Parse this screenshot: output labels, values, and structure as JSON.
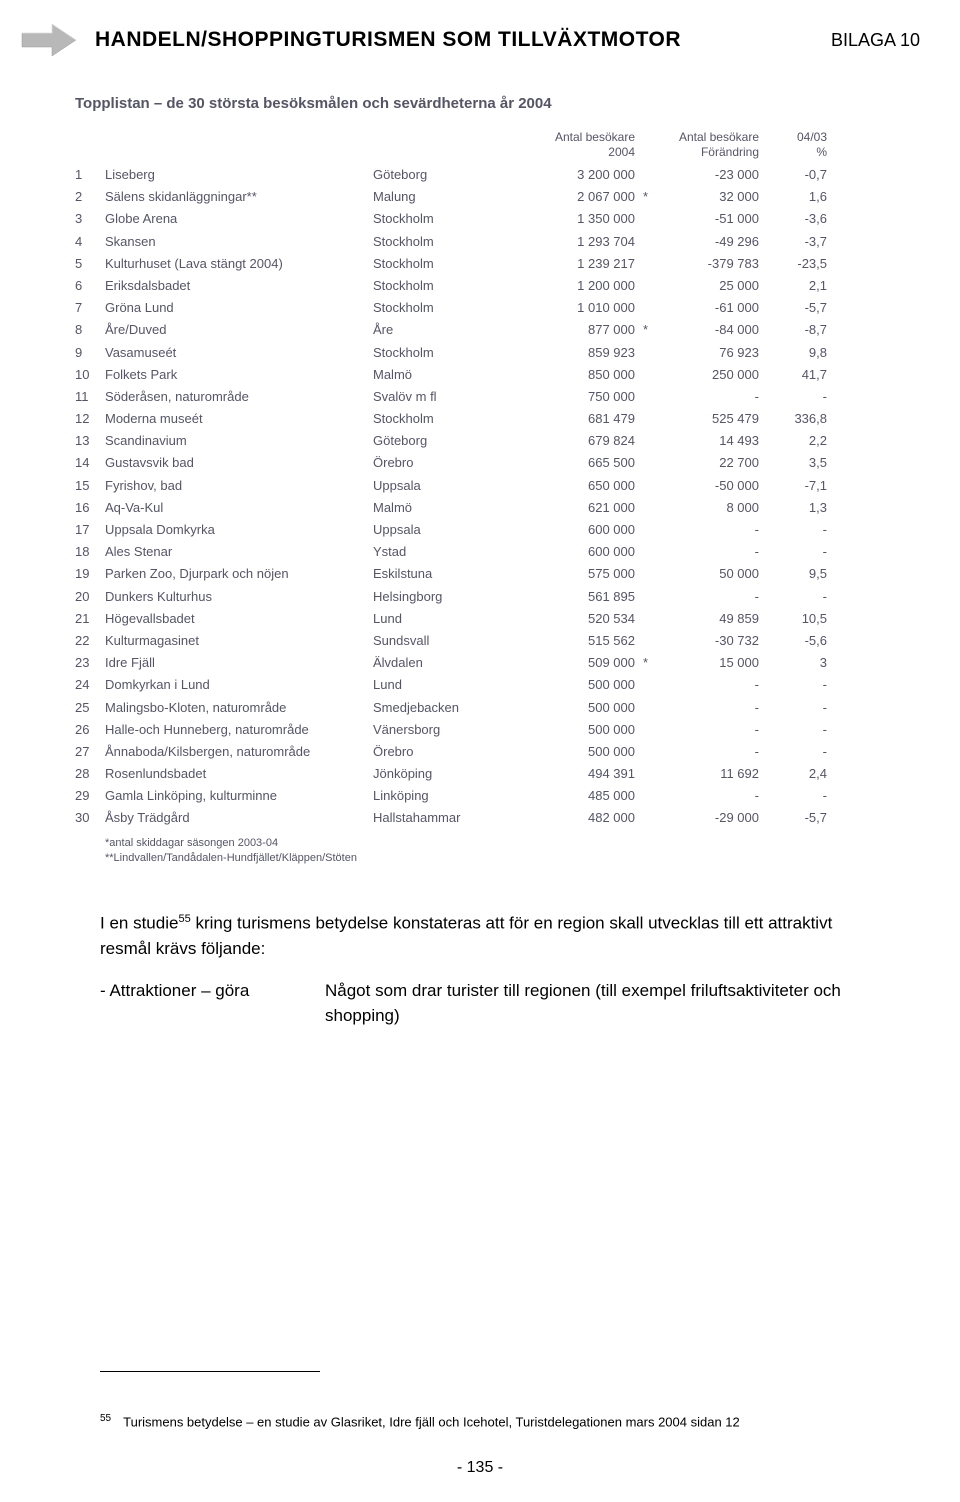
{
  "header": {
    "title": "HANDELN/SHOPPINGTURISMEN SOM TILLVÄXTMOTOR",
    "appendix": "BILAGA 10",
    "arrow_color": "#b8b8b8"
  },
  "table": {
    "title": "Topplistan – de 30 största besöksmålen och sevärdheterna år 2004",
    "headers": {
      "visitors": "Antal besökare\n2004",
      "change": "Antal besökare\nFörändring",
      "pct": "04/03\n%"
    },
    "rows": [
      {
        "n": "1",
        "name": "Liseberg",
        "city": "Göteborg",
        "vis": "3 200 000",
        "star": "",
        "chg": "-23 000",
        "pct": "-0,7"
      },
      {
        "n": "2",
        "name": "Sälens skidanläggningar**",
        "city": "Malung",
        "vis": "2 067 000",
        "star": "*",
        "chg": "32 000",
        "pct": "1,6"
      },
      {
        "n": "3",
        "name": "Globe Arena",
        "city": "Stockholm",
        "vis": "1 350 000",
        "star": "",
        "chg": "-51 000",
        "pct": "-3,6"
      },
      {
        "n": "4",
        "name": "Skansen",
        "city": "Stockholm",
        "vis": "1 293 704",
        "star": "",
        "chg": "-49 296",
        "pct": "-3,7"
      },
      {
        "n": "5",
        "name": "Kulturhuset (Lava stängt 2004)",
        "city": "Stockholm",
        "vis": "1 239 217",
        "star": "",
        "chg": "-379 783",
        "pct": "-23,5"
      },
      {
        "n": "6",
        "name": "Eriksdalsbadet",
        "city": "Stockholm",
        "vis": "1 200 000",
        "star": "",
        "chg": "25 000",
        "pct": "2,1"
      },
      {
        "n": "7",
        "name": "Gröna Lund",
        "city": "Stockholm",
        "vis": "1 010 000",
        "star": "",
        "chg": "-61 000",
        "pct": "-5,7"
      },
      {
        "n": "8",
        "name": "Åre/Duved",
        "city": "Åre",
        "vis": "877 000",
        "star": "*",
        "chg": "-84 000",
        "pct": "-8,7"
      },
      {
        "n": "9",
        "name": "Vasamuseét",
        "city": "Stockholm",
        "vis": "859 923",
        "star": "",
        "chg": "76 923",
        "pct": "9,8"
      },
      {
        "n": "10",
        "name": "Folkets Park",
        "city": "Malmö",
        "vis": "850 000",
        "star": "",
        "chg": "250 000",
        "pct": "41,7"
      },
      {
        "n": "11",
        "name": "Söderåsen, naturområde",
        "city": "Svalöv m fl",
        "vis": "750 000",
        "star": "",
        "chg": "-",
        "pct": "-"
      },
      {
        "n": "12",
        "name": "Moderna museét",
        "city": "Stockholm",
        "vis": "681 479",
        "star": "",
        "chg": "525 479",
        "pct": "336,8"
      },
      {
        "n": "13",
        "name": "Scandinavium",
        "city": "Göteborg",
        "vis": "679 824",
        "star": "",
        "chg": "14 493",
        "pct": "2,2"
      },
      {
        "n": "14",
        "name": "Gustavsvik bad",
        "city": "Örebro",
        "vis": "665 500",
        "star": "",
        "chg": "22 700",
        "pct": "3,5"
      },
      {
        "n": "15",
        "name": "Fyrishov, bad",
        "city": "Uppsala",
        "vis": "650 000",
        "star": "",
        "chg": "-50 000",
        "pct": "-7,1"
      },
      {
        "n": "16",
        "name": "Aq-Va-Kul",
        "city": "Malmö",
        "vis": "621 000",
        "star": "",
        "chg": "8 000",
        "pct": "1,3"
      },
      {
        "n": "17",
        "name": "Uppsala Domkyrka",
        "city": "Uppsala",
        "vis": "600 000",
        "star": "",
        "chg": "-",
        "pct": "-"
      },
      {
        "n": "18",
        "name": "Ales Stenar",
        "city": "Ystad",
        "vis": "600 000",
        "star": "",
        "chg": "-",
        "pct": "-"
      },
      {
        "n": "19",
        "name": "Parken Zoo, Djurpark och nöjen",
        "city": "Eskilstuna",
        "vis": "575 000",
        "star": "",
        "chg": "50 000",
        "pct": "9,5"
      },
      {
        "n": "20",
        "name": "Dunkers Kulturhus",
        "city": "Helsingborg",
        "vis": "561 895",
        "star": "",
        "chg": "-",
        "pct": "-"
      },
      {
        "n": "21",
        "name": "Högevallsbadet",
        "city": "Lund",
        "vis": "520 534",
        "star": "",
        "chg": "49 859",
        "pct": "10,5"
      },
      {
        "n": "22",
        "name": "Kulturmagasinet",
        "city": "Sundsvall",
        "vis": "515 562",
        "star": "",
        "chg": "-30 732",
        "pct": "-5,6"
      },
      {
        "n": "23",
        "name": "Idre Fjäll",
        "city": "Älvdalen",
        "vis": "509 000",
        "star": "*",
        "chg": "15 000",
        "pct": "3"
      },
      {
        "n": "24",
        "name": "Domkyrkan i Lund",
        "city": "Lund",
        "vis": "500 000",
        "star": "",
        "chg": "-",
        "pct": "-"
      },
      {
        "n": "25",
        "name": "Malingsbo-Kloten, naturområde",
        "city": "Smedjebacken",
        "vis": "500 000",
        "star": "",
        "chg": "-",
        "pct": "-"
      },
      {
        "n": "26",
        "name": "Halle-och Hunneberg, naturområde",
        "city": "Vänersborg",
        "vis": "500 000",
        "star": "",
        "chg": "-",
        "pct": "-"
      },
      {
        "n": "27",
        "name": "Ånnaboda/Kilsbergen, naturområde",
        "city": "Örebro",
        "vis": "500 000",
        "star": "",
        "chg": "-",
        "pct": "-"
      },
      {
        "n": "28",
        "name": "Rosenlundsbadet",
        "city": "Jönköping",
        "vis": "494 391",
        "star": "",
        "chg": "11 692",
        "pct": "2,4"
      },
      {
        "n": "29",
        "name": "Gamla Linköping, kulturminne",
        "city": "Linköping",
        "vis": "485 000",
        "star": "",
        "chg": "-",
        "pct": "-"
      },
      {
        "n": "30",
        "name": "Åsby Trädgård",
        "city": "Hallstahammar",
        "vis": "482 000",
        "star": "",
        "chg": "-29 000",
        "pct": "-5,7"
      }
    ],
    "footnote1": "*antal skiddagar säsongen 2003-04",
    "footnote2": "**Lindvallen/Tandådalen-Hundfjället/Kläppen/Stöten"
  },
  "body": {
    "para1_pre": "I en studie",
    "para1_sup": "55",
    "para1_post": " kring turismens betydelse konstateras att för en region skall utvecklas till ett attraktivt resmål krävs följande:",
    "bullet_lead": "- Attraktioner – göra",
    "bullet_desc": "Något som drar turister till regionen (till exempel friluftsaktiviteter och shopping)"
  },
  "footnote": {
    "num": "55",
    "text": "Turismens betydelse – en studie av  Glasriket, Idre fjäll och Icehotel, Turistdelegationen mars 2004 sidan 12"
  },
  "page_number": "- 135 -"
}
